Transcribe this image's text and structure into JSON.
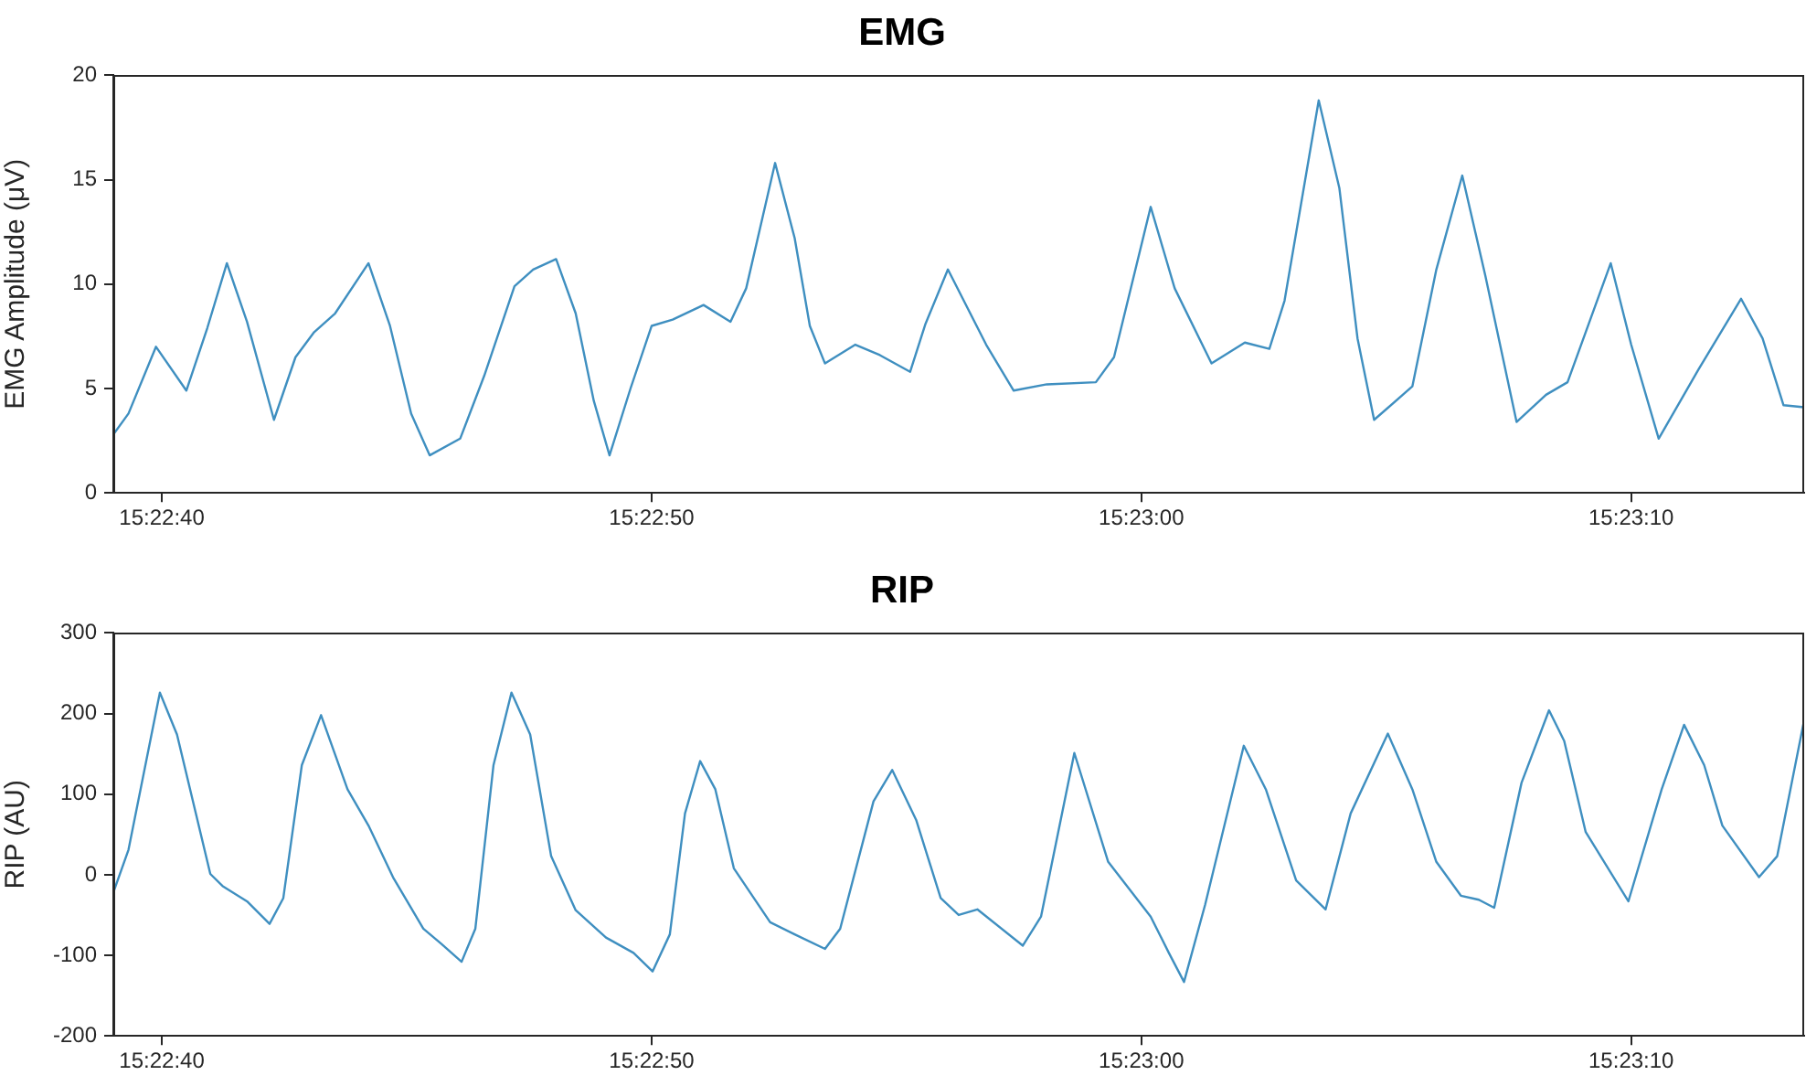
{
  "chart_data": [
    {
      "type": "line",
      "title": "EMG",
      "ylabel": "EMG Amplitude (μV)",
      "legend": false,
      "grid": false,
      "xlim": [
        15.377503,
        15.387092
      ],
      "xticks": [
        {
          "value": 15.377778,
          "label": "15:22:40"
        },
        {
          "value": 15.380556,
          "label": "15:22:50"
        },
        {
          "value": 15.383333,
          "label": "15:23:00"
        },
        {
          "value": 15.386111,
          "label": "15:23:10"
        }
      ],
      "ylim": [
        0,
        20
      ],
      "yticks": [
        0,
        5,
        10,
        15,
        20
      ],
      "x": [
        15.377503,
        15.377589,
        15.377745,
        15.377917,
        15.378036,
        15.378147,
        15.378261,
        15.378414,
        15.378536,
        15.378642,
        15.378761,
        15.37895,
        15.379072,
        15.379192,
        15.379297,
        15.37947,
        15.379606,
        15.379778,
        15.379884,
        15.380014,
        15.380125,
        15.380228,
        15.380317,
        15.380436,
        15.380556,
        15.380675,
        15.38085,
        15.381003,
        15.381092,
        15.381256,
        15.381367,
        15.381453,
        15.381539,
        15.381711,
        15.38185,
        15.382022,
        15.382109,
        15.382236,
        15.382453,
        15.382609,
        15.382797,
        15.383075,
        15.383178,
        15.383386,
        15.383522,
        15.383731,
        15.38392,
        15.384059,
        15.384145,
        15.384339,
        15.384456,
        15.384559,
        15.384653,
        15.38487,
        15.385006,
        15.385153,
        15.385284,
        15.385461,
        15.385628,
        15.38575,
        15.385995,
        15.386111,
        15.386267,
        15.386492,
        15.386734,
        15.386856,
        15.386975,
        15.387092
      ],
      "series": [
        {
          "color": "#3f8fc0",
          "values": [
            2.8,
            3.8,
            7.0,
            4.9,
            7.9,
            11.0,
            8.2,
            3.5,
            6.5,
            7.7,
            8.6,
            11.0,
            8.0,
            3.8,
            1.8,
            2.6,
            5.6,
            9.9,
            10.7,
            11.2,
            8.6,
            4.4,
            1.8,
            5.0,
            8.0,
            8.3,
            9.0,
            8.2,
            9.8,
            15.8,
            12.2,
            8.0,
            6.2,
            7.1,
            6.6,
            5.8,
            8.1,
            10.7,
            7.1,
            4.9,
            5.2,
            5.3,
            6.5,
            13.7,
            9.8,
            6.2,
            7.2,
            6.9,
            9.2,
            18.8,
            14.6,
            7.4,
            3.5,
            5.1,
            10.7,
            15.2,
            10.4,
            3.4,
            4.7,
            5.3,
            11.0,
            7.1,
            2.6,
            5.9,
            9.3,
            7.4,
            4.2,
            4.1
          ]
        }
      ]
    },
    {
      "type": "line",
      "title": "RIP",
      "ylabel": "RIP (AU)",
      "legend": false,
      "grid": false,
      "xlim": [
        15.377503,
        15.387092
      ],
      "xticks": [
        {
          "value": 15.377778,
          "label": "15:22:40"
        },
        {
          "value": 15.380556,
          "label": "15:22:50"
        },
        {
          "value": 15.383333,
          "label": "15:23:00"
        },
        {
          "value": 15.386111,
          "label": "15:23:10"
        }
      ],
      "ylim": [
        -200,
        300
      ],
      "yticks": [
        -200,
        -100,
        0,
        100,
        200,
        300
      ],
      "x": [
        15.377503,
        15.377589,
        15.377767,
        15.377864,
        15.378053,
        15.378122,
        15.378261,
        15.378389,
        15.378467,
        15.378572,
        15.378681,
        15.378831,
        15.37895,
        15.379089,
        15.379261,
        15.379364,
        15.379478,
        15.379556,
        15.379659,
        15.379761,
        15.379867,
        15.379986,
        15.380125,
        15.380297,
        15.380453,
        15.380561,
        15.380659,
        15.380745,
        15.380831,
        15.380917,
        15.381022,
        15.381228,
        15.381367,
        15.381539,
        15.381625,
        15.381814,
        15.38192,
        15.382056,
        15.382195,
        15.382297,
        15.382403,
        15.382661,
        15.382764,
        15.382953,
        15.383145,
        15.383386,
        15.383489,
        15.383575,
        15.383695,
        15.383914,
        15.384039,
        15.384211,
        15.384378,
        15.38452,
        15.384731,
        15.38487,
        15.385006,
        15.385145,
        15.385247,
        15.385334,
        15.385489,
        15.385645,
        15.385731,
        15.385853,
        15.386095,
        15.386284,
        15.386411,
        15.386525,
        15.386628,
        15.386836,
        15.386939,
        15.387092
      ],
      "series": [
        {
          "color": "#3f8fc0",
          "values": [
            -22,
            31,
            226,
            174,
            1,
            -14,
            -33,
            -61,
            -29,
            136,
            198,
            106,
            61,
            -3,
            -67,
            -86,
            -108,
            -67,
            136,
            226,
            174,
            23,
            -44,
            -78,
            -97,
            -120,
            -74,
            76,
            141,
            106,
            8,
            -59,
            -74,
            -92,
            -67,
            91,
            130,
            68,
            -29,
            -50,
            -43,
            -88,
            -52,
            151,
            16,
            -52,
            -97,
            -133,
            -37,
            160,
            106,
            -7,
            -43,
            76,
            175,
            106,
            16,
            -26,
            -31,
            -41,
            114,
            204,
            166,
            53,
            -33,
            106,
            186,
            136,
            61,
            -3,
            23,
            192
          ]
        }
      ]
    }
  ]
}
